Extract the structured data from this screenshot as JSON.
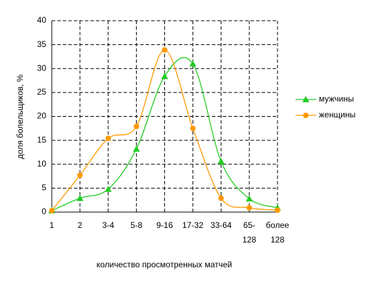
{
  "chart_data": {
    "type": "line",
    "categories": [
      "1",
      "2",
      "3-4",
      "5-8",
      "9-16",
      "17-32",
      "33-64",
      "65-128",
      "более 128"
    ],
    "series": [
      {
        "name": "мужчины",
        "color": "#22cc22",
        "marker": "triangle",
        "values": [
          0.3,
          2.9,
          4.8,
          13.2,
          28.4,
          31,
          10.6,
          2.8,
          0.9
        ]
      },
      {
        "name": "женщины",
        "color": "#ff9900",
        "marker": "circle",
        "values": [
          0.3,
          7.7,
          15.4,
          17.9,
          33.9,
          17.5,
          2.9,
          0.9,
          0.4
        ]
      }
    ],
    "ylim": [
      0,
      40
    ],
    "yticks": [
      0,
      5,
      10,
      15,
      20,
      25,
      30,
      35,
      40
    ],
    "ylabel": "доля болельщиков, %",
    "xlabel": "количество просмотренных матчей",
    "grid": true,
    "smooth": true,
    "legend": "right"
  }
}
